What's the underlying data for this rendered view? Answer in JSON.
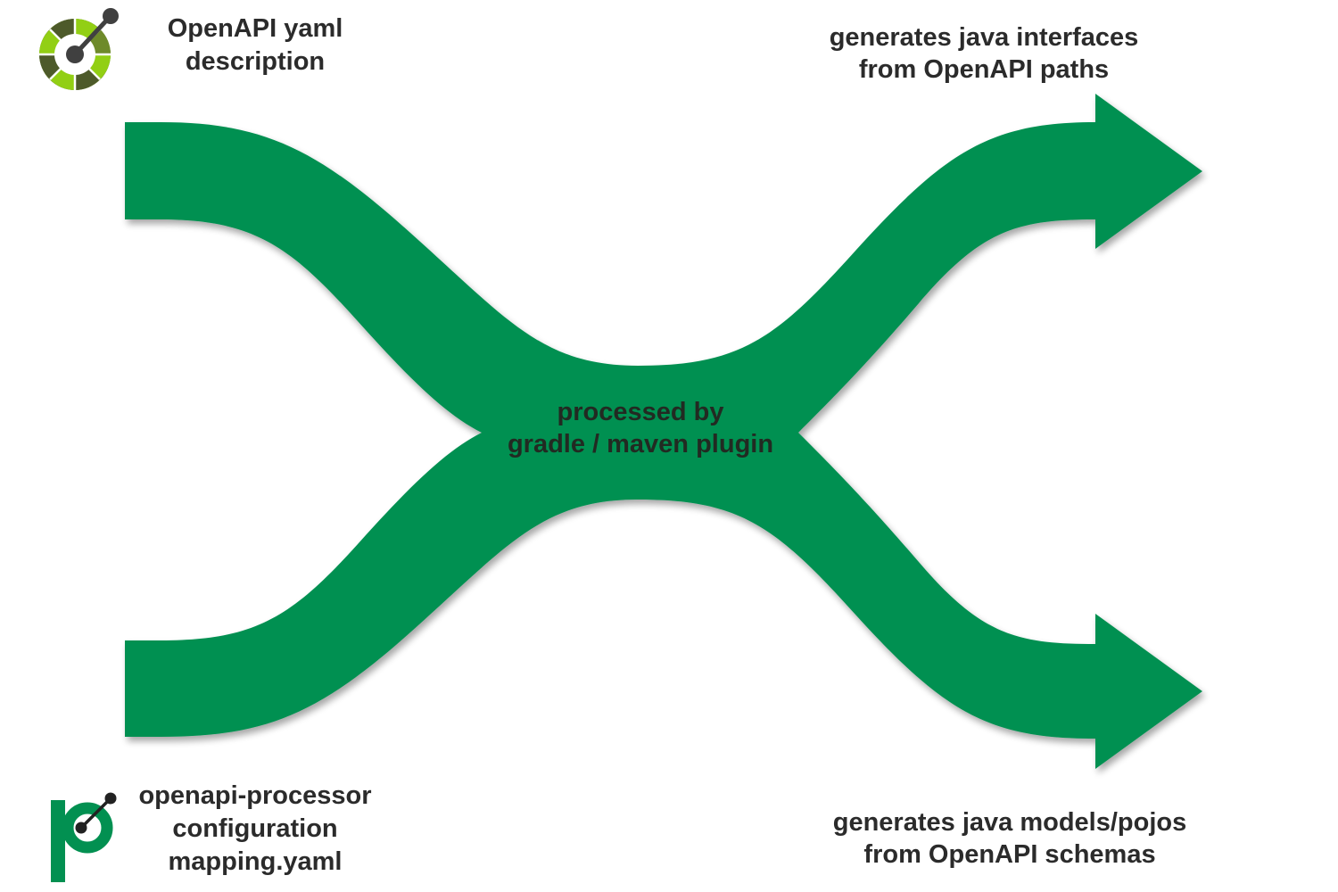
{
  "colors": {
    "flow_green": "#029051",
    "text": "#2b2b2b",
    "logo_dark_green": "#4d5a2a",
    "logo_light_green": "#92cf14",
    "logo_mid_green": "#6e8a2a",
    "logo_dot": "#404040",
    "processor_green": "#029051"
  },
  "icons": {
    "openapi_logo": "openapi-logo-icon",
    "processor_logo": "openapi-processor-logo-icon"
  },
  "labels": {
    "openapi_input": [
      "OpenAPI yaml",
      "description"
    ],
    "processor_input": [
      "openapi-processor",
      "configuration",
      "mapping.yaml"
    ],
    "center": [
      "processed by",
      "gradle / maven plugin"
    ],
    "output_interfaces": [
      "generates java interfaces",
      "from OpenAPI paths"
    ],
    "output_models": [
      "generates java models/pojos",
      "from OpenAPI schemas"
    ]
  }
}
